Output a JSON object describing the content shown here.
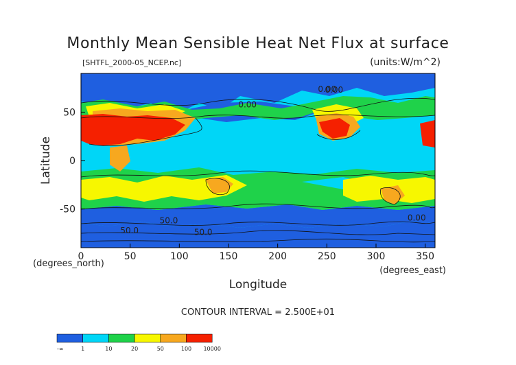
{
  "chart_data": {
    "type": "heatmap",
    "title": "Monthly Mean Sensible Heat Net Flux at surface",
    "source_file": "[SHTFL_2000-05_NCEP.nc]",
    "units": "(units:W/m^2)",
    "xlabel": "Longitude",
    "ylabel": "Latitude",
    "x_unit_label": "(degrees_east)",
    "y_unit_label": "(degrees_north)",
    "xlim": [
      0,
      360
    ],
    "ylim": [
      -90,
      90
    ],
    "x_ticks": [
      0,
      50,
      100,
      150,
      200,
      250,
      300,
      350
    ],
    "y_ticks": [
      -50,
      0,
      50
    ],
    "contour_interval": "CONTOUR INTERVAL = 2.500E+01",
    "contour_labels": [
      "0.00",
      "0.00",
      "0.00",
      "0.00",
      "50.0",
      "50.0",
      "50.0"
    ],
    "color_levels": [
      {
        "label": "-∞",
        "color": "#1f5fe0"
      },
      {
        "label": "1",
        "color": "#00d6f7"
      },
      {
        "label": "10",
        "color": "#1fd24a"
      },
      {
        "label": "20",
        "color": "#f7f700"
      },
      {
        "label": "50",
        "color": "#f7a81f"
      },
      {
        "label": "100",
        "color": "#f52000"
      },
      {
        "label": "10000",
        "color": ""
      }
    ]
  }
}
